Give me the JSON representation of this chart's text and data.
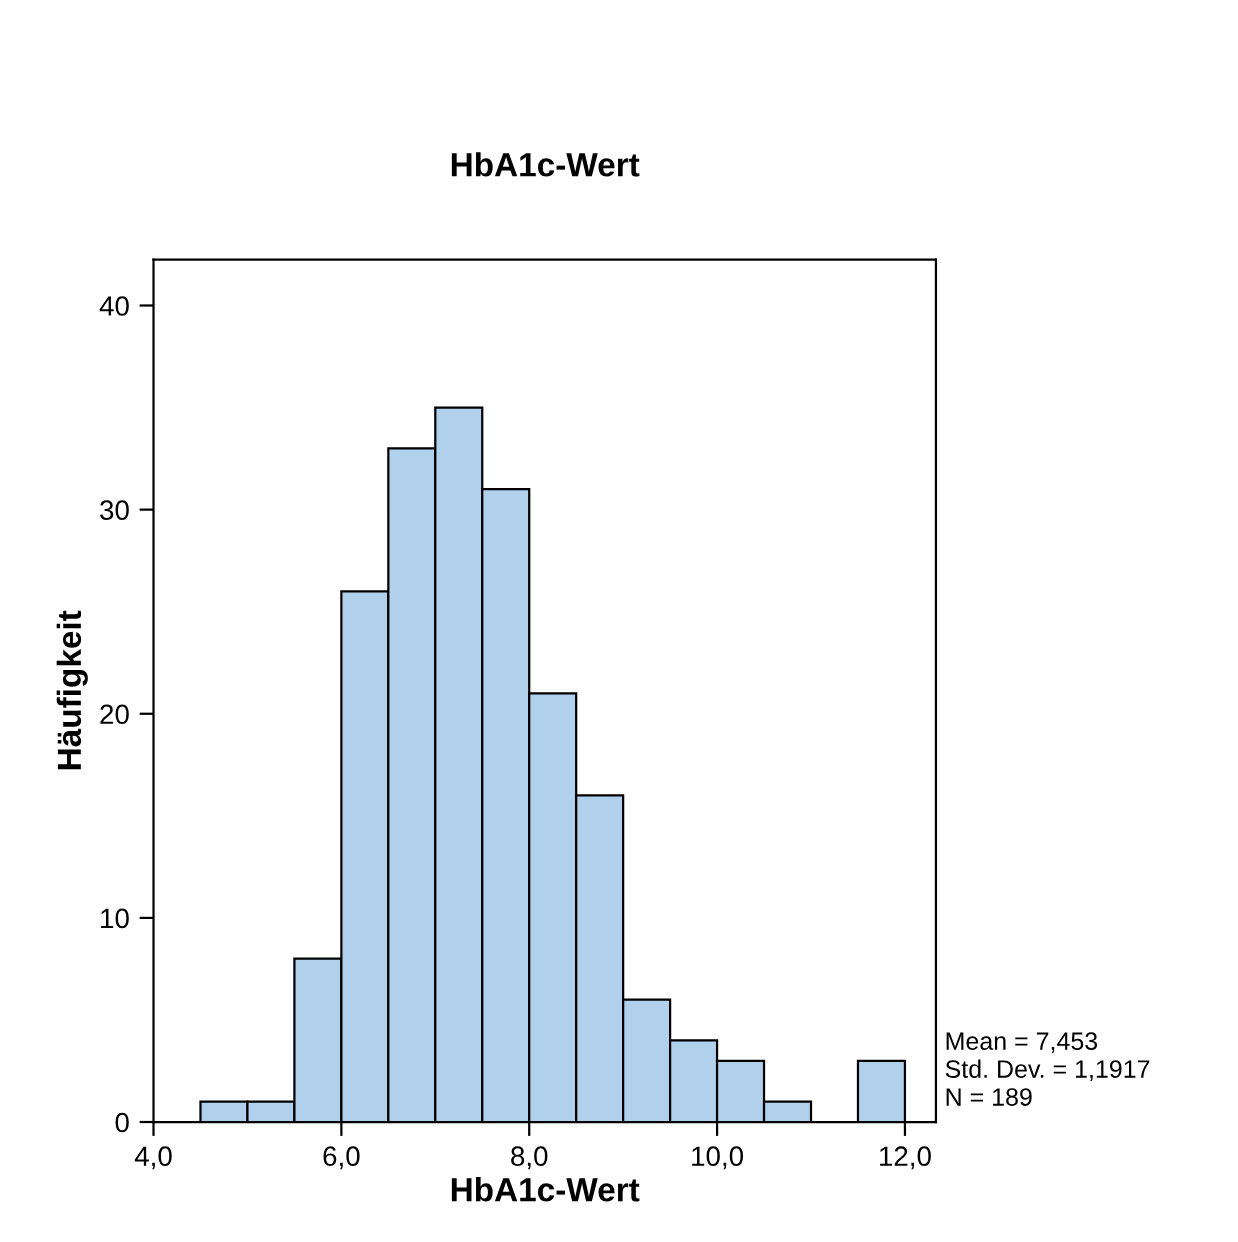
{
  "chart_data": {
    "type": "histogram",
    "title": "HbA1c-Wert",
    "xlabel": "HbA1c-Wert",
    "ylabel": "Häufigkeit",
    "bins": [
      4.5,
      5.0,
      5.5,
      6.0,
      6.5,
      7.0,
      7.5,
      8.0,
      8.5,
      9.0,
      9.5,
      10.0,
      10.5,
      11.0,
      11.5,
      12.0
    ],
    "values": [
      1,
      1,
      8,
      26,
      33,
      35,
      31,
      21,
      16,
      6,
      4,
      3,
      1,
      0,
      3
    ],
    "color": "#b0d0ec",
    "xlim": [
      4.0,
      12.33
    ],
    "ylim": [
      0,
      42.25
    ],
    "xticks": [
      {
        "value": 4.0,
        "label": "4,0"
      },
      {
        "value": 6.0,
        "label": "6,0"
      },
      {
        "value": 8.0,
        "label": "8,0"
      },
      {
        "value": 10.0,
        "label": "10,0"
      },
      {
        "value": 12.0,
        "label": "12,0"
      }
    ],
    "yticks": [
      0,
      10,
      20,
      30,
      40
    ],
    "grid": false,
    "annotations": [
      "Mean = 7,453",
      "Std. Dev. = 1,1917",
      "N = 189"
    ]
  }
}
